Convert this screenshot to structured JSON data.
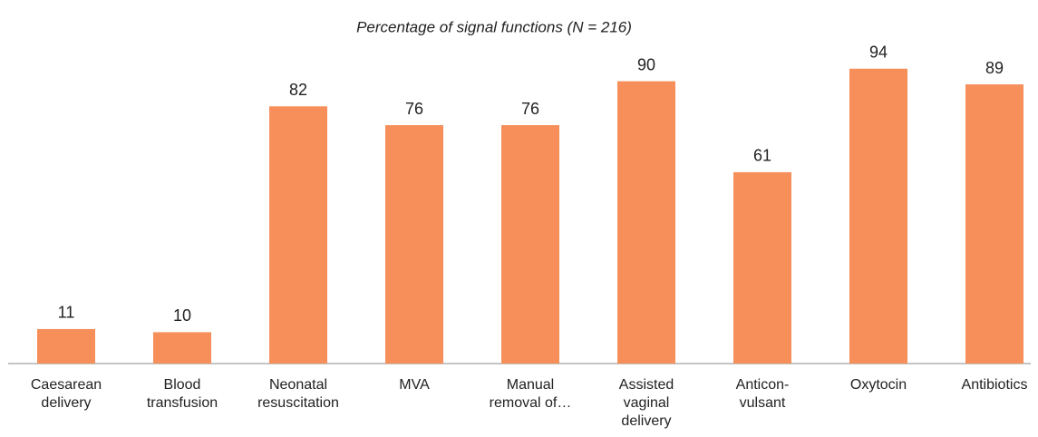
{
  "chart_data": {
    "type": "bar",
    "title": "Percentage of signal functions (N = 216)",
    "categories": [
      "Caesarean\ndelivery",
      "Blood\ntransfusion",
      "Neonatal\nresuscitation",
      "MVA",
      "Manual\nremoval of…",
      "Assisted\nvaginal\ndelivery",
      "Anticon-\nvulsant",
      "Oxytocin",
      "Antibiotics"
    ],
    "values": [
      11,
      10,
      82,
      76,
      76,
      90,
      61,
      94,
      89
    ],
    "color": "#f68f5a",
    "ylim": [
      0,
      100
    ]
  }
}
